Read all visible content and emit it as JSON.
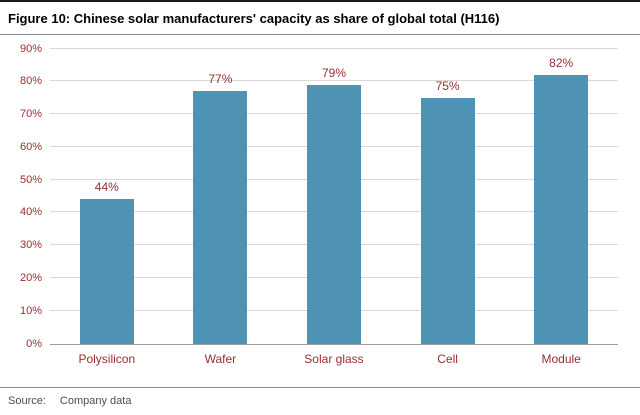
{
  "figure": {
    "title": "Figure 10: Chinese solar manufacturers' capacity as share of global total (H116)",
    "source_label": "Source:",
    "source_value": "Company data"
  },
  "colors": {
    "bar": "#4E92B4",
    "axis_text": "#962F2F",
    "gridline": "#D9D9D9",
    "baseline": "#9C9C9C",
    "title_text": "#000000",
    "source_text": "#4D4D4D"
  },
  "chart_data": {
    "type": "bar",
    "title": "Chinese solar manufacturers' capacity as share of global total (H116)",
    "categories": [
      "Polysilicon",
      "Wafer",
      "Solar glass",
      "Cell",
      "Module"
    ],
    "values": [
      44,
      77,
      79,
      75,
      82
    ],
    "data_labels": [
      "44%",
      "77%",
      "79%",
      "75%",
      "82%"
    ],
    "xlabel": "",
    "ylabel": "",
    "ylim": [
      0,
      90
    ],
    "ytick_step": 10,
    "ytick_labels": [
      "0%",
      "10%",
      "20%",
      "30%",
      "40%",
      "50%",
      "60%",
      "70%",
      "80%",
      "90%"
    ],
    "grid": true,
    "legend": false
  }
}
